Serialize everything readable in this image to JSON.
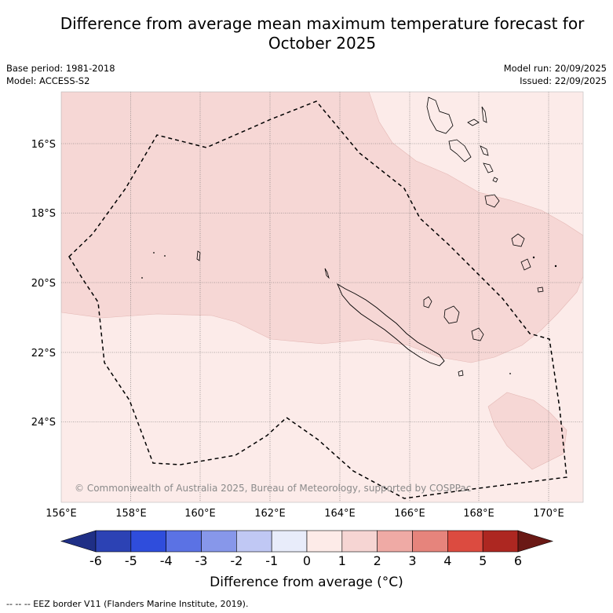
{
  "title_line1": "Difference from average mean maximum temperature forecast for",
  "title_line2": "October 2025",
  "base_period": "Base period: 1981-2018",
  "model": "Model: ACCESS-S2",
  "model_run": "Model run: 20/09/2025",
  "issued": "Issued: 22/09/2025",
  "credit": "© Commonwealth of Australia 2025, Bureau of Meteorology, supported by COSPPac",
  "lon_labels": [
    "156°E",
    "158°E",
    "160°E",
    "162°E",
    "164°E",
    "166°E",
    "168°E",
    "170°E"
  ],
  "lat_labels": [
    "16°S",
    "18°S",
    "20°S",
    "22°S",
    "24°S"
  ],
  "colorbar": {
    "ticks": [
      "-6",
      "-5",
      "-4",
      "-3",
      "-2",
      "-1",
      "0",
      "1",
      "2",
      "3",
      "4",
      "5",
      "6"
    ],
    "colors": [
      "#1f2f86",
      "#2c42b4",
      "#2f4ddc",
      "#5b72e4",
      "#8797ea",
      "#c0c8f4",
      "#e8ecfa",
      "#fdebe8",
      "#f6d5d3",
      "#efaaa5",
      "#e6847c",
      "#dc4b40",
      "#ad2721",
      "#6a1915"
    ],
    "label": "Difference from average (°C)"
  },
  "legend_footer": "--  --  -- EEZ border V11 (Flanders Marine Institute, 2019)."
}
